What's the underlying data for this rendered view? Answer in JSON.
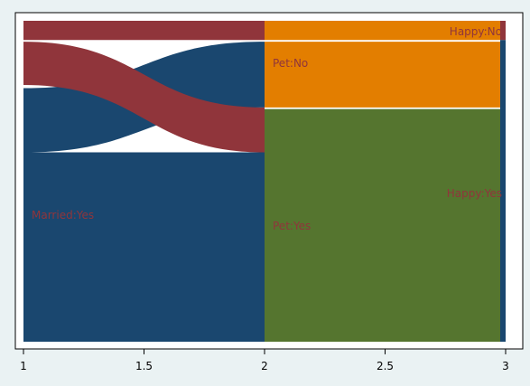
{
  "chart_data": {
    "type": "sankey",
    "xlabel": "",
    "ylabel": "",
    "xlim": [
      1,
      3
    ],
    "xticks": [
      1,
      1.5,
      2,
      2.5,
      3
    ],
    "xtick_labels": [
      "1",
      "1.5",
      "2",
      "2.5",
      "3"
    ],
    "ylim": [
      0,
      1
    ],
    "grid": false,
    "legend": "none",
    "colors": {
      "background": "#eaf2f3",
      "plot_background": "#ffffff",
      "married_no": "#90353b",
      "married_yes": "#1a476f",
      "pet_no": "#e37e00",
      "pet_yes": "#55752f",
      "happy_no": "#90353b",
      "happy_yes": "#1a476f",
      "label_text": "#90353b"
    },
    "nodes": [
      {
        "id": "married_no",
        "x": 1,
        "y0": 0.94,
        "y1": 1.0,
        "label": "",
        "color_key": "married_no"
      },
      {
        "id": "married_yes",
        "x": 1,
        "y0": 0.0,
        "y1": 0.94,
        "label": "Married:Yes",
        "color_key": "married_yes"
      },
      {
        "id": "pet_no",
        "x": 2,
        "y0": 0.73,
        "y1": 1.0,
        "label": "Pet:No",
        "color_key": "pet_no"
      },
      {
        "id": "pet_yes",
        "x": 2,
        "y0": 0.0,
        "y1": 0.73,
        "label": "Pet:Yes",
        "color_key": "pet_yes"
      },
      {
        "id": "happy_no",
        "x": 3,
        "y0": 0.94,
        "y1": 1.0,
        "label": "Happy:No",
        "color_key": "happy_no"
      },
      {
        "id": "happy_yes",
        "x": 3,
        "y0": 0.0,
        "y1": 0.94,
        "label": "Happy:Yes",
        "color_key": "happy_yes"
      }
    ],
    "links": [
      {
        "from": "married_no",
        "to": "pet_no",
        "src": [
          0.94,
          1.0
        ],
        "dst": [
          0.94,
          1.0
        ],
        "color_key": "married_no"
      },
      {
        "from": "married_yes",
        "to": "pet_no",
        "src": [
          0.73,
          0.94
        ],
        "dst": [
          0.73,
          0.94
        ],
        "color_key": "married_no"
      },
      {
        "from": "married_yes",
        "to": "pet_yes",
        "src": [
          0.0,
          0.73
        ],
        "dst": [
          0.0,
          0.73
        ],
        "color_key": "married_yes"
      },
      {
        "from": "pet_no",
        "to": "happy_no",
        "src": [
          0.94,
          1.0
        ],
        "dst": [
          0.94,
          1.0
        ],
        "color_key": "pet_no"
      },
      {
        "from": "pet_no",
        "to": "happy_yes",
        "src": [
          0.73,
          0.94
        ],
        "dst": [
          0.73,
          0.94
        ],
        "color_key": "pet_no"
      },
      {
        "from": "pet_yes",
        "to": "happy_yes",
        "src": [
          0.0,
          0.73
        ],
        "dst": [
          0.0,
          0.73
        ],
        "color_key": "pet_yes"
      }
    ]
  }
}
